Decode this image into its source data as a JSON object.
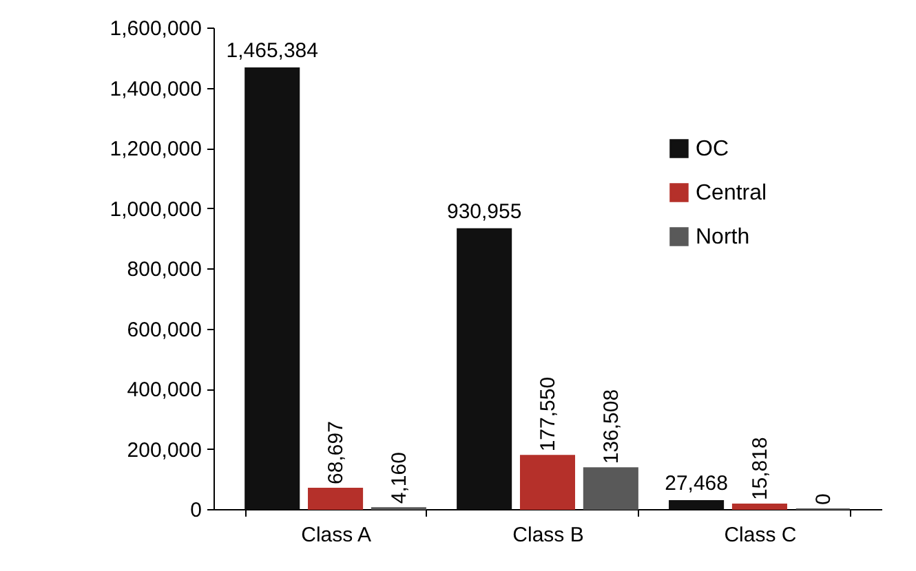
{
  "chart_data": {
    "type": "bar",
    "categories": [
      "Class A",
      "Class B",
      "Class C"
    ],
    "series": [
      {
        "name": "OC",
        "color": "#111111",
        "values": [
          1465384,
          930955,
          27468
        ],
        "value_labels": [
          "1,465,384",
          "930,955",
          "27,468"
        ]
      },
      {
        "name": "Central",
        "color": "#b5302a",
        "values": [
          68697,
          177550,
          15818
        ],
        "value_labels": [
          "68,697",
          "177,550",
          "15,818"
        ]
      },
      {
        "name": "North",
        "color": "#595959",
        "values": [
          4160,
          136508,
          0
        ],
        "value_labels": [
          "4,160",
          "136,508",
          "0"
        ]
      }
    ],
    "ylim": [
      0,
      1600000
    ],
    "yticks": [
      0,
      {
        "value": 200000,
        "label": "200,000"
      },
      {
        "value": 400000,
        "label": "400,000"
      },
      {
        "value": 600000,
        "label": "600,000"
      },
      {
        "value": 800000,
        "label": "800,000"
      },
      {
        "value": 1000000,
        "label": "1,000,000"
      },
      {
        "value": 1200000,
        "label": "1,200,000"
      },
      {
        "value": 1400000,
        "label": "1,400,000"
      },
      {
        "value": 1600000,
        "label": "1,600,000"
      }
    ],
    "legend": "right",
    "grid": false
  }
}
